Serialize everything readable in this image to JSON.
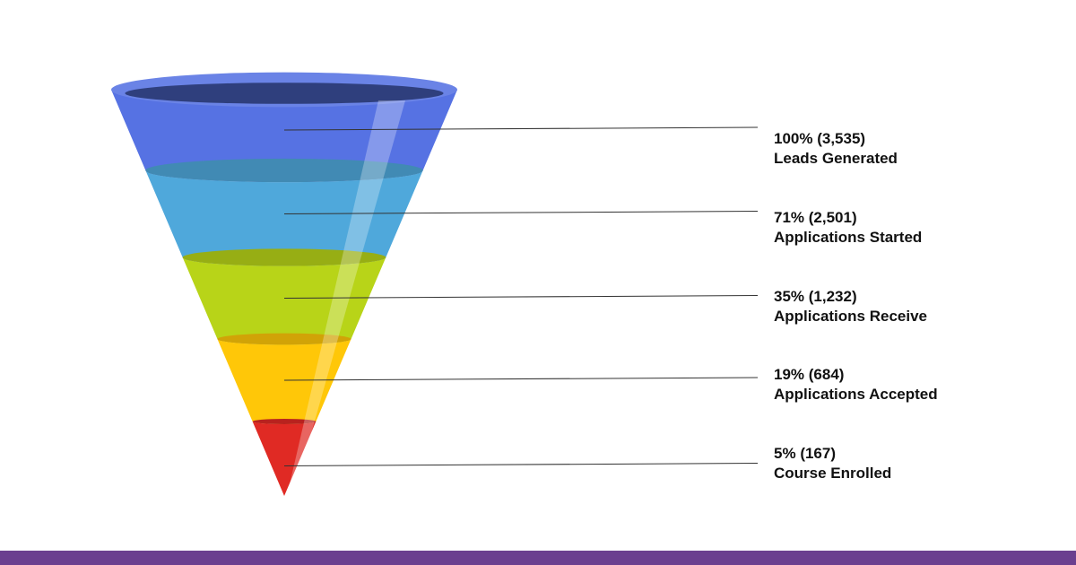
{
  "chart_data": {
    "type": "funnel",
    "stages": [
      {
        "percent": "100%",
        "count": "(3,535)",
        "value": 3535,
        "name": "Leads Generated",
        "color": "#5672E3"
      },
      {
        "percent": "71%",
        "count": "(2,501)",
        "value": 2501,
        "name": "Applications Started",
        "color": "#4FA8DB"
      },
      {
        "percent": "35%",
        "count": "(1,232)",
        "value": 1232,
        "name": "Applications Receive",
        "color": "#B8D418"
      },
      {
        "percent": "19%",
        "count": "(684)",
        "value": 684,
        "name": "Applications Accepted",
        "color": "#FFC708"
      },
      {
        "percent": "5%",
        "count": "(167)",
        "value": 167,
        "name": "Course Enrolled",
        "color": "#E02A24"
      }
    ]
  },
  "colors": {
    "background": "#FFFFFF",
    "bottom_bar": "#6B3F8F",
    "leader_line": "#333333"
  }
}
